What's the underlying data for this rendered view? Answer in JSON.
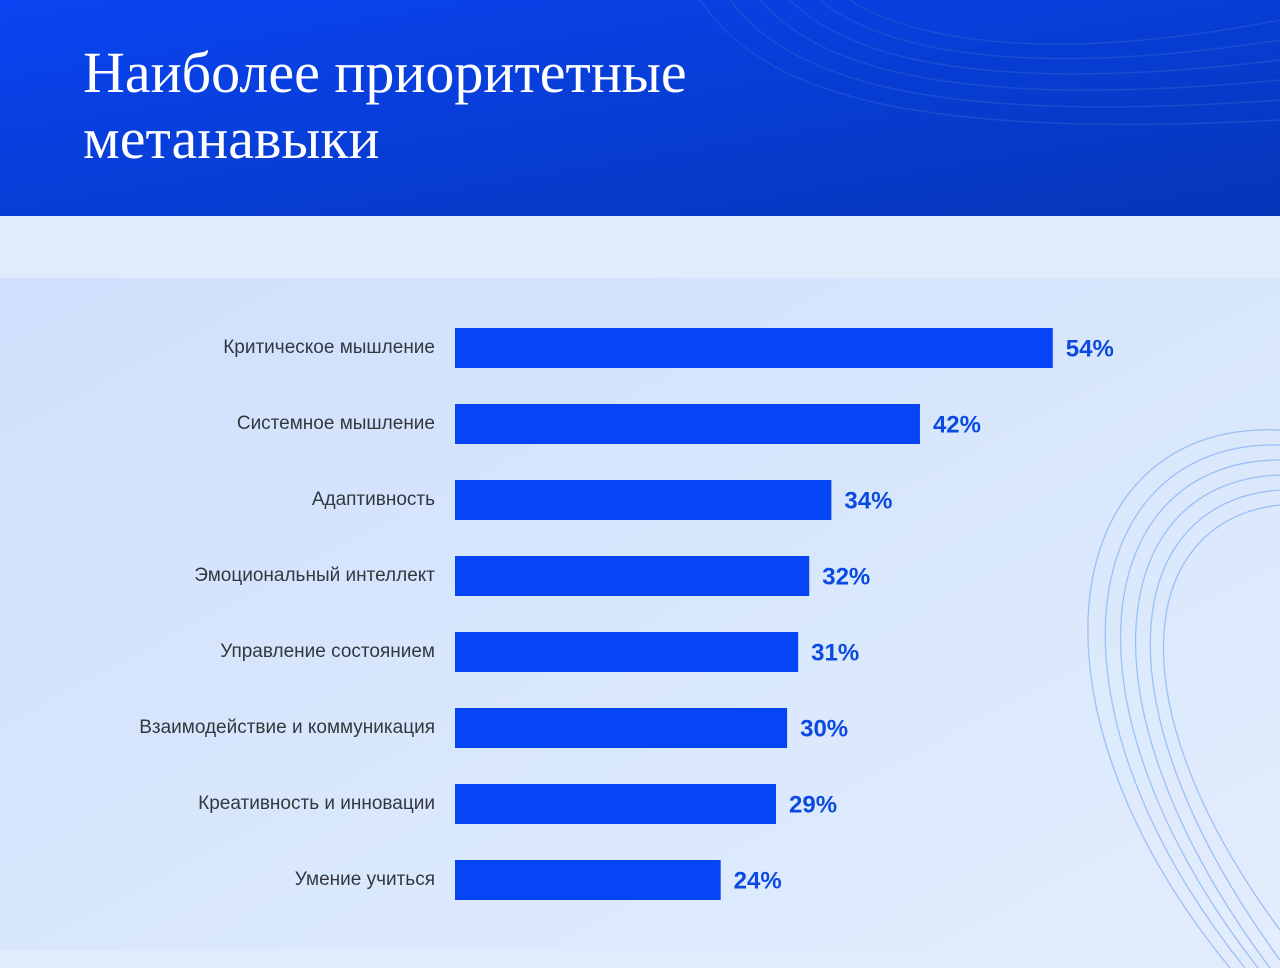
{
  "chart_data": {
    "type": "bar",
    "orientation": "horizontal",
    "title": "Наиболее приоритетные метанавыки",
    "categories": [
      "Критическое мышление",
      "Системное мышление",
      "Адаптивность",
      "Эмоциональный интеллект",
      "Управление состоянием",
      "Взаимодействие и коммуникация",
      "Креативность и инновации",
      "Умение учиться"
    ],
    "values": [
      54,
      42,
      34,
      32,
      31,
      30,
      29,
      24
    ],
    "value_labels": [
      "54%",
      "42%",
      "34%",
      "32%",
      "31%",
      "30%",
      "29%",
      "24%"
    ],
    "color": "#0545f5"
  }
}
